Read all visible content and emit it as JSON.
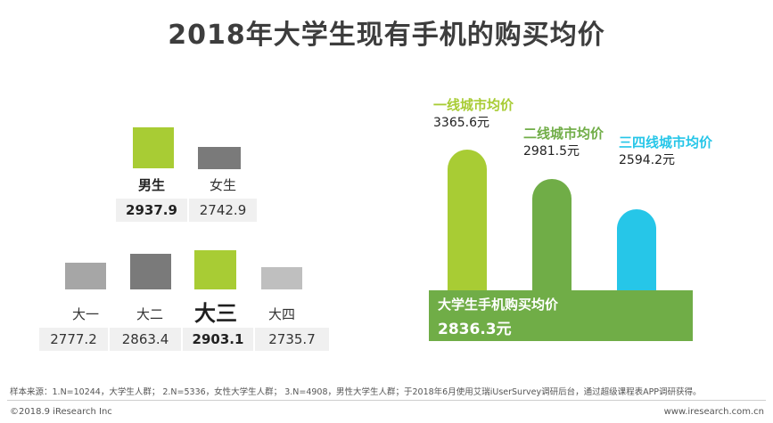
{
  "title": "2018年大学生现有手机的购买均价",
  "colors": {
    "accent_green": "#a8cc34",
    "dark_gray": "#7a7a7a",
    "mid_gray": "#a6a6a6",
    "light_gray": "#bfbfbf",
    "tier1": "#a8cc34",
    "tier2": "#70ad47",
    "tier3": "#26c6e8",
    "band": "#70ad47"
  },
  "gender": [
    {
      "label": "男生",
      "value": "2937.9",
      "color": "#a8cc34",
      "highlight": true
    },
    {
      "label": "女生",
      "value": "2742.9",
      "color": "#7a7a7a",
      "highlight": false
    }
  ],
  "grade": [
    {
      "label": "大一",
      "value": "2777.2",
      "color": "#a6a6a6",
      "highlight": false
    },
    {
      "label": "大二",
      "value": "2863.4",
      "color": "#7a7a7a",
      "highlight": false
    },
    {
      "label": "大三",
      "value": "2903.1",
      "color": "#a8cc34",
      "highlight": true
    },
    {
      "label": "大四",
      "value": "2735.7",
      "color": "#bfbfbf",
      "highlight": false
    }
  ],
  "chart_data": {
    "type": "bar",
    "title": "2018年大学生现有手机的购买均价",
    "categories": [
      "一线城市均价",
      "二线城市均价",
      "三四线城市均价"
    ],
    "values": [
      3365.6,
      2981.5,
      2594.2
    ],
    "value_labels": [
      "3365.6元",
      "2981.5元",
      "2594.2元"
    ],
    "colors": [
      "#a8cc34",
      "#70ad47",
      "#26c6e8"
    ],
    "baseline": {
      "label": "大学生手机购买均价",
      "value": 2836.3,
      "value_label": "2836.3元"
    }
  },
  "footnote": "样本来源：1.N=10244，大学生人群； 2.N=5336，女性大学生人群； 3.N=4908，男性大学生人群；于2018年6月使用艾瑞iUserSurvey调研后台，通过超级课程表APP调研获得。",
  "copyright": "©2018.9 iResearch Inc",
  "website": "www.iresearch.com.cn"
}
